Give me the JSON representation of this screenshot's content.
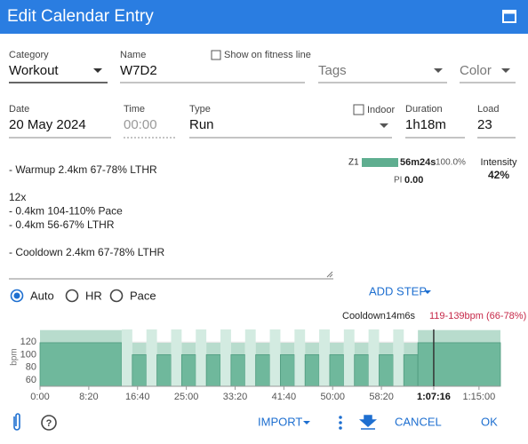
{
  "header": {
    "title": "Edit Calendar Entry"
  },
  "fields": {
    "category": {
      "label": "Category",
      "value": "Workout"
    },
    "name": {
      "label": "Name",
      "value": "W7D2"
    },
    "show_fitness_line": "Show on fitness line",
    "tags": "Tags",
    "color": "Color",
    "date": {
      "label": "Date",
      "value": "20 May 2024"
    },
    "time": {
      "label": "Time",
      "value": "00:00"
    },
    "type": {
      "label": "Type",
      "value": "Run"
    },
    "indoor": "Indoor",
    "duration": {
      "label": "Duration",
      "value": "1h18m"
    },
    "load": {
      "label": "Load",
      "value": "23"
    }
  },
  "description": [
    [
      "- Warmup 2.4km 67-78% LTHR"
    ],
    [
      "12x",
      "- 0.4km 104-110% Pace",
      "- 0.4km 56-67% LTHR"
    ],
    [
      "- Cooldown 2.4km 67-78% LTHR"
    ]
  ],
  "zones": {
    "zone": "Z1",
    "time": "56m24s",
    "percent": "100.0%",
    "pi_label": "PI",
    "pi_value": "0.00",
    "intensity_label": "Intensity",
    "intensity_value": "42%"
  },
  "modes": [
    "Auto",
    "HR",
    "Pace"
  ],
  "add_step": "ADD STEP",
  "chart": {
    "tooltip": {
      "name": "Cooldown",
      "duration": "14m6s",
      "target": "119-139bpm (66-78%)"
    },
    "ylabel": "bpm",
    "ylim": [
      50,
      140
    ],
    "yticks": [
      60,
      80,
      100,
      120
    ],
    "xlim": [
      0,
      4720
    ],
    "xticks": [
      {
        "value": 0,
        "label": "0:00"
      },
      {
        "value": 500,
        "label": "8:20"
      },
      {
        "value": 1000,
        "label": "16:40"
      },
      {
        "value": 1500,
        "label": "25:00"
      },
      {
        "value": 2000,
        "label": "33:20"
      },
      {
        "value": 2500,
        "label": "41:40"
      },
      {
        "value": 3000,
        "label": "50:00"
      },
      {
        "value": 3500,
        "label": "58:20"
      },
      {
        "value": 4036,
        "label": "1:07:16"
      },
      {
        "value": 4500,
        "label": "1:15:00"
      }
    ],
    "cursor_tick": 8,
    "segments": [
      {
        "duration": 838,
        "low": 119,
        "high": 139
      },
      {
        "duration": 108,
        "low": null,
        "high": null
      },
      {
        "duration": 145,
        "low": 100,
        "high": 119
      },
      {
        "duration": 108,
        "low": null,
        "high": null
      },
      {
        "duration": 145,
        "low": 100,
        "high": 119
      },
      {
        "duration": 108,
        "low": null,
        "high": null
      },
      {
        "duration": 145,
        "low": 100,
        "high": 119
      },
      {
        "duration": 108,
        "low": null,
        "high": null
      },
      {
        "duration": 145,
        "low": 100,
        "high": 119
      },
      {
        "duration": 108,
        "low": null,
        "high": null
      },
      {
        "duration": 145,
        "low": 100,
        "high": 119
      },
      {
        "duration": 108,
        "low": null,
        "high": null
      },
      {
        "duration": 145,
        "low": 100,
        "high": 119
      },
      {
        "duration": 108,
        "low": null,
        "high": null
      },
      {
        "duration": 145,
        "low": 100,
        "high": 119
      },
      {
        "duration": 108,
        "low": null,
        "high": null
      },
      {
        "duration": 145,
        "low": 100,
        "high": 119
      },
      {
        "duration": 108,
        "low": null,
        "high": null
      },
      {
        "duration": 145,
        "low": 100,
        "high": 119
      },
      {
        "duration": 108,
        "low": null,
        "high": null
      },
      {
        "duration": 145,
        "low": 100,
        "high": 119
      },
      {
        "duration": 108,
        "low": null,
        "high": null
      },
      {
        "duration": 145,
        "low": 100,
        "high": 119
      },
      {
        "duration": 108,
        "low": null,
        "high": null
      },
      {
        "duration": 145,
        "low": 100,
        "high": 119
      },
      {
        "duration": 846,
        "low": 119,
        "high": 139
      }
    ]
  },
  "footer": {
    "import": "IMPORT",
    "cancel": "CANCEL",
    "ok": "OK"
  }
}
